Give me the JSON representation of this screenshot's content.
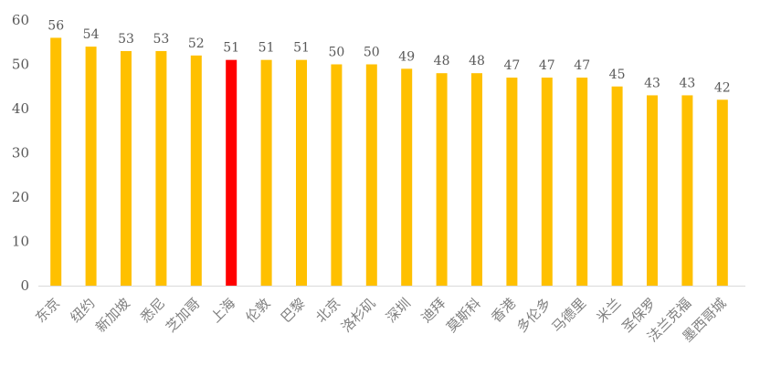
{
  "chart_data": {
    "type": "bar",
    "title": "",
    "xlabel": "",
    "ylabel": "",
    "ylim": [
      0,
      60
    ],
    "yticks": [
      0,
      10,
      20,
      30,
      40,
      50,
      60
    ],
    "grid": false,
    "categories": [
      "东京",
      "纽约",
      "新加坡",
      "悉尼",
      "芝加哥",
      "上海",
      "伦敦",
      "巴黎",
      "北京",
      "洛杉矶",
      "深圳",
      "迪拜",
      "莫斯科",
      "香港",
      "多伦多",
      "马德里",
      "米兰",
      "圣保罗",
      "法兰克福",
      "墨西哥城"
    ],
    "values": [
      56,
      54,
      53,
      53,
      52,
      51,
      51,
      51,
      50,
      50,
      49,
      48,
      48,
      47,
      47,
      47,
      45,
      43,
      43,
      42
    ],
    "colors": {
      "default": "#FFC000",
      "highlight": "#FF0000"
    },
    "highlight_category": "上海"
  }
}
